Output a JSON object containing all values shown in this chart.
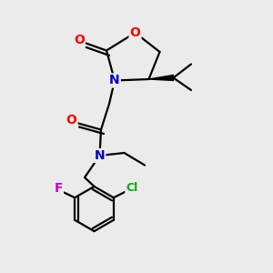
{
  "bg_color": "#ebebeb",
  "bond_color": "#000000",
  "bond_width": 1.6,
  "atom_colors": {
    "O": "#ff0000",
    "N": "#0000cc",
    "F": "#cc00cc",
    "Cl": "#00aa00",
    "C": "#000000"
  },
  "font_size_atom": 10,
  "font_size_small": 9,
  "xlim": [
    0,
    10
  ],
  "ylim": [
    0,
    10
  ]
}
